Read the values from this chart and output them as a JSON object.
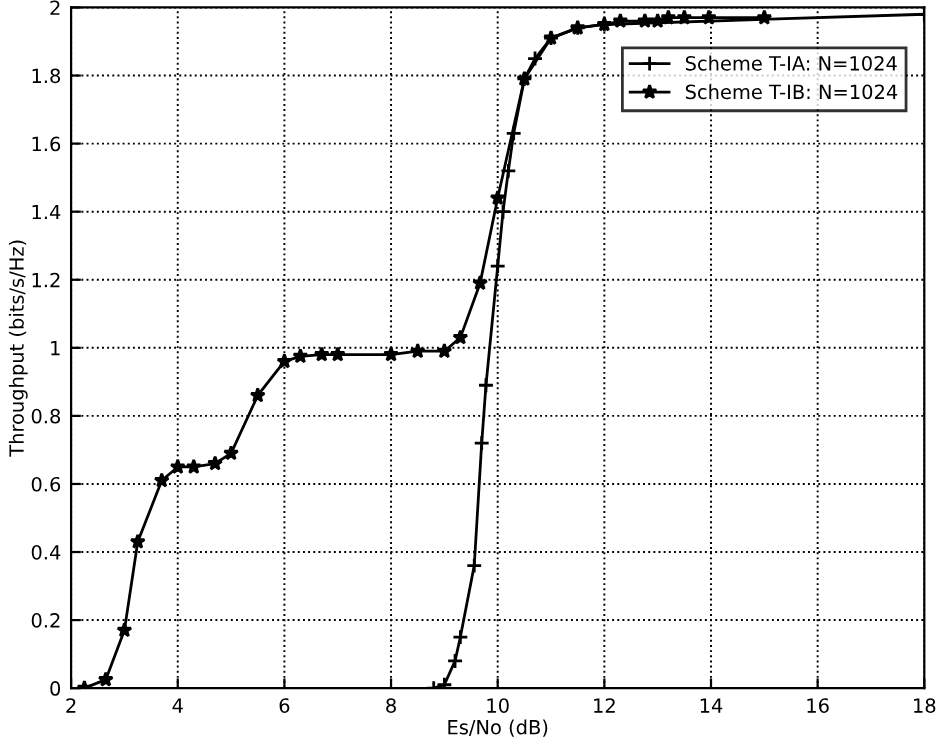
{
  "chart_data": {
    "type": "line",
    "xlabel": "Es/No (dB)",
    "ylabel": "Throughput (bits/s/Hz)",
    "xlim": [
      2,
      18
    ],
    "xticks": [
      2,
      4,
      6,
      8,
      10,
      12,
      14,
      16,
      18
    ],
    "ylim": [
      0,
      2
    ],
    "yticks": [
      0,
      0.2,
      0.4,
      0.6,
      0.8,
      1,
      1.2,
      1.4,
      1.6,
      1.8,
      2
    ],
    "grid": true,
    "legend": "top right",
    "series": [
      {
        "name": "Scheme T-IA: N=1024",
        "color": "#000000",
        "marker": "cross",
        "line_style": "solid",
        "x": [
          8.8,
          9.0,
          9.2,
          9.3,
          9.56,
          9.7,
          9.78,
          10.0,
          10.1,
          10.2,
          10.3,
          10.5,
          10.7,
          11.0,
          11.5,
          12.0,
          18.0
        ],
        "values": [
          0,
          0.01,
          0.08,
          0.15,
          0.36,
          0.72,
          0.89,
          1.24,
          1.4,
          1.52,
          1.63,
          1.79,
          1.85,
          1.91,
          1.94,
          1.95,
          1.98
        ]
      },
      {
        "name": "Scheme T-IB: N=1024",
        "color": "#000000",
        "marker": "star",
        "line_style": "solid",
        "x": [
          2.25,
          2.65,
          3.0,
          3.25,
          3.7,
          4.0,
          4.3,
          4.7,
          5.0,
          5.5,
          6.0,
          6.3,
          6.7,
          7.0,
          8.0,
          8.5,
          9.0,
          9.3,
          9.67,
          10.0,
          10.5,
          11.0,
          11.5,
          12.0,
          12.3,
          12.76,
          13.0,
          13.2,
          13.5,
          13.96,
          15.0
        ],
        "values": [
          0,
          0.025,
          0.17,
          0.43,
          0.61,
          0.65,
          0.65,
          0.66,
          0.69,
          0.86,
          0.96,
          0.975,
          0.98,
          0.98,
          0.98,
          0.99,
          0.99,
          1.03,
          1.19,
          1.44,
          1.79,
          1.91,
          1.94,
          1.95,
          1.96,
          1.96,
          1.96,
          1.97,
          1.97,
          1.97,
          1.97
        ]
      }
    ]
  }
}
